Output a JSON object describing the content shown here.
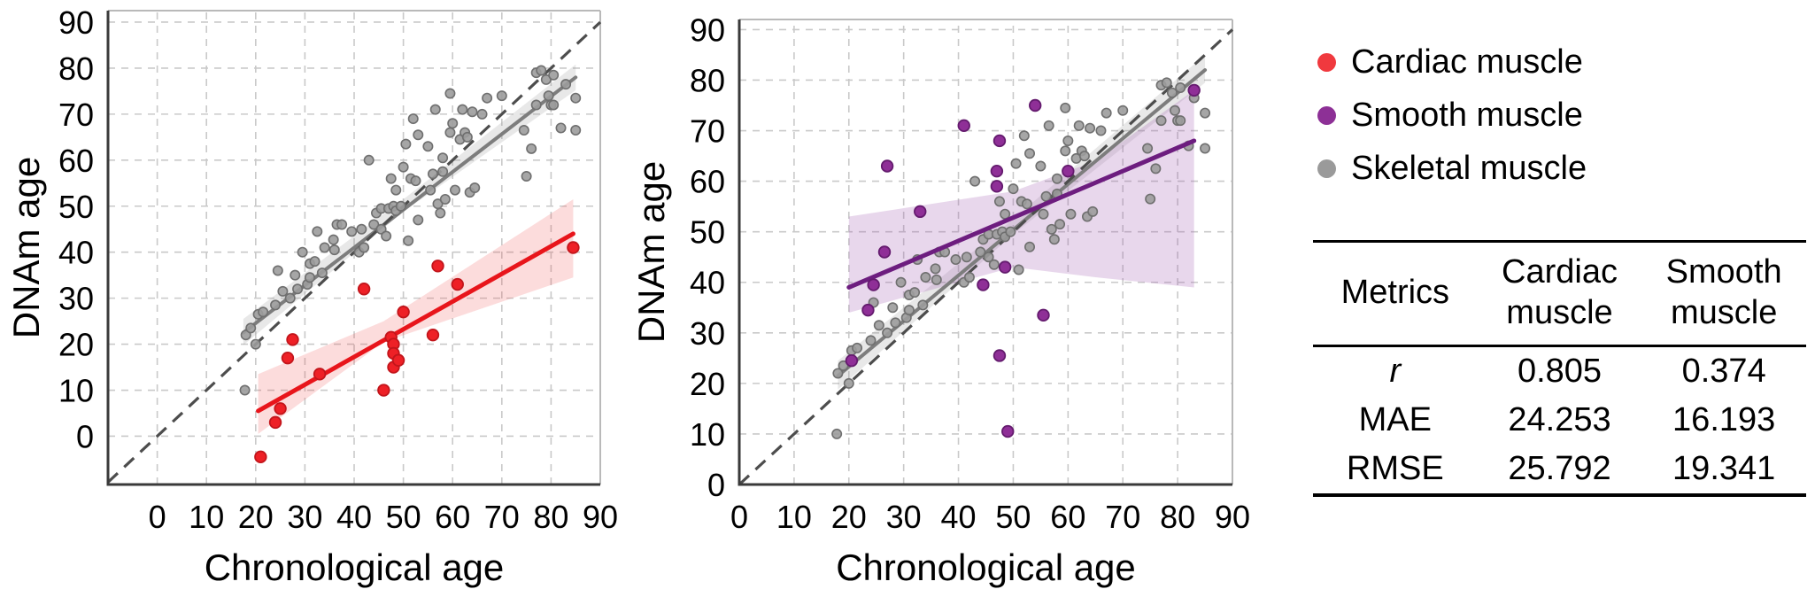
{
  "figure": {
    "background": "#ffffff"
  },
  "legend": {
    "items": [
      {
        "label": "Cardiac muscle",
        "color": "#f0393e"
      },
      {
        "label": "Smooth muscle",
        "color": "#8d3096"
      },
      {
        "label": "Skeletal muscle",
        "color": "#9a9a9a"
      }
    ]
  },
  "metrics_table": {
    "header": [
      "Metrics",
      "Cardiac muscle",
      "Smooth muscle"
    ],
    "rows": [
      {
        "metric": "r",
        "values": [
          "0.805",
          "0.374"
        ]
      },
      {
        "metric": "MAE",
        "values": [
          "24.253",
          "16.193"
        ]
      },
      {
        "metric": "RMSE",
        "values": [
          "25.792",
          "19.341"
        ]
      }
    ]
  },
  "chart_data": [
    {
      "type": "scatter",
      "panel": "left",
      "xlabel": "Chronological age",
      "ylabel": "DNAm age",
      "xlim": [
        -10,
        90
      ],
      "ylim": [
        -10.5,
        92.5
      ],
      "xticks": [
        0,
        10,
        20,
        30,
        40,
        50,
        60,
        70,
        80,
        90
      ],
      "yticks": [
        0,
        10,
        20,
        30,
        40,
        50,
        60,
        70,
        80,
        90
      ],
      "grid": true,
      "identity_line": {
        "x1": -10,
        "y1": -10,
        "x2": 90,
        "y2": 90,
        "color": "#4d4d4d"
      },
      "series": [
        {
          "name": "Skeletal muscle",
          "color": "#9c9c9c",
          "point_stroke": "#6f6f6f",
          "line_color": "#7d7d7d",
          "band_color": "rgba(150,150,150,0.22)",
          "regression": [
            [
              17.5,
              22.5
            ],
            [
              85,
              78
            ]
          ],
          "band": [
            [
              17.5,
              25.5
            ],
            [
              50,
              51.5
            ],
            [
              85,
              80.8
            ],
            [
              85,
              75.2
            ],
            [
              50,
              48.8
            ],
            [
              17.5,
              19.8
            ]
          ],
          "points": [
            [
              17.8,
              10
            ],
            [
              18,
              22
            ],
            [
              19,
              23.5
            ],
            [
              20,
              20
            ],
            [
              20.5,
              26.5
            ],
            [
              21.5,
              27
            ],
            [
              24,
              28.5
            ],
            [
              24.5,
              36
            ],
            [
              25.5,
              31.5
            ],
            [
              27,
              30
            ],
            [
              28,
              35
            ],
            [
              28.5,
              32
            ],
            [
              29.5,
              40
            ],
            [
              30.5,
              33
            ],
            [
              31,
              34.5
            ],
            [
              31,
              37.5
            ],
            [
              32,
              38
            ],
            [
              32.5,
              44.5
            ],
            [
              33.5,
              35.5
            ],
            [
              34,
              41
            ],
            [
              35.8,
              42.7
            ],
            [
              36,
              40.5
            ],
            [
              36.5,
              46
            ],
            [
              37.5,
              46
            ],
            [
              39.5,
              44.5
            ],
            [
              41,
              40
            ],
            [
              41.5,
              45
            ],
            [
              42,
              41
            ],
            [
              43,
              60
            ],
            [
              44,
              46
            ],
            [
              44.5,
              48.5
            ],
            [
              45.5,
              49.5
            ],
            [
              45.5,
              45
            ],
            [
              46.5,
              43.5
            ],
            [
              47,
              49.5
            ],
            [
              47.5,
              56
            ],
            [
              48,
              50
            ],
            [
              48.5,
              49
            ],
            [
              48.5,
              53.5
            ],
            [
              49.5,
              50
            ],
            [
              50,
              58.5
            ],
            [
              50.5,
              63.5
            ],
            [
              51,
              42.5
            ],
            [
              51.5,
              56
            ],
            [
              52,
              69
            ],
            [
              52.5,
              55.5
            ],
            [
              53,
              47
            ],
            [
              53,
              65.5
            ],
            [
              55,
              63
            ],
            [
              55.5,
              53.5
            ],
            [
              56,
              57
            ],
            [
              56.5,
              71
            ],
            [
              57,
              50.5
            ],
            [
              57.5,
              48.5
            ],
            [
              58,
              57.5
            ],
            [
              58,
              60.5
            ],
            [
              58.5,
              51.5
            ],
            [
              59.5,
              66
            ],
            [
              59.5,
              74.5
            ],
            [
              60,
              68
            ],
            [
              60.5,
              53.5
            ],
            [
              61.5,
              64.5
            ],
            [
              62,
              71
            ],
            [
              62.5,
              66
            ],
            [
              63,
              65
            ],
            [
              63.5,
              53
            ],
            [
              64,
              70.5
            ],
            [
              64.5,
              54
            ],
            [
              66,
              70
            ],
            [
              67,
              73.5
            ],
            [
              70,
              74
            ],
            [
              74.5,
              66.5
            ],
            [
              75,
              56.5
            ],
            [
              76,
              62.5
            ],
            [
              77,
              72
            ],
            [
              77,
              79
            ],
            [
              78,
              79.5
            ],
            [
              79,
              77.5
            ],
            [
              79.5,
              74
            ],
            [
              80,
              72
            ],
            [
              80.5,
              78.5
            ],
            [
              80.5,
              72
            ],
            [
              82,
              67
            ],
            [
              83,
              76.5
            ],
            [
              85,
              73.5
            ],
            [
              85,
              66.5
            ]
          ]
        },
        {
          "name": "Cardiac muscle",
          "color": "#ee2026",
          "point_stroke": "#c2151b",
          "line_color": "#e8151b",
          "band_color": "rgba(238,80,80,0.2)",
          "regression": [
            [
              20.5,
              5.5
            ],
            [
              84.5,
              44
            ]
          ],
          "band": [
            [
              20.5,
              13.5
            ],
            [
              46,
              25
            ],
            [
              84.5,
              51.5
            ],
            [
              84.5,
              34.5
            ],
            [
              46,
              20.5
            ],
            [
              20.5,
              0.5
            ]
          ],
          "points": [
            [
              21,
              -4.5
            ],
            [
              24,
              3
            ],
            [
              25,
              6
            ],
            [
              26.5,
              17
            ],
            [
              27.5,
              21
            ],
            [
              33,
              13.5
            ],
            [
              42,
              32
            ],
            [
              46,
              10
            ],
            [
              47.5,
              21.5
            ],
            [
              48,
              20
            ],
            [
              48,
              18
            ],
            [
              48,
              15
            ],
            [
              49,
              16.5
            ],
            [
              50,
              27
            ],
            [
              56,
              22
            ],
            [
              57,
              37
            ],
            [
              61,
              33
            ],
            [
              84.5,
              41
            ]
          ]
        }
      ]
    },
    {
      "type": "scatter",
      "panel": "right",
      "xlabel": "Chronological age",
      "ylabel": "DNAm age",
      "xlim": [
        0,
        90
      ],
      "ylim": [
        0,
        92
      ],
      "xticks": [
        0,
        10,
        20,
        30,
        40,
        50,
        60,
        70,
        80,
        90
      ],
      "yticks": [
        0,
        10,
        20,
        30,
        40,
        50,
        60,
        70,
        80,
        90
      ],
      "grid": true,
      "identity_line": {
        "x1": 0,
        "y1": 0,
        "x2": 90,
        "y2": 90,
        "color": "#4d4d4d"
      },
      "series": [
        {
          "name": "Skeletal muscle",
          "color": "#9c9c9c",
          "point_stroke": "#6f6f6f",
          "line_color": "#7d7d7d",
          "band_color": "rgba(150,150,150,0.22)",
          "regression": [
            [
              18,
              21.5
            ],
            [
              85,
              82
            ]
          ],
          "band": [
            [
              18,
              24.5
            ],
            [
              50,
              52.5
            ],
            [
              85,
              85
            ],
            [
              85,
              79.5
            ],
            [
              50,
              49.5
            ],
            [
              18,
              18.8
            ]
          ],
          "points": [
            [
              17.8,
              10
            ],
            [
              18,
              22
            ],
            [
              19,
              23.5
            ],
            [
              20,
              20
            ],
            [
              20.5,
              26.5
            ],
            [
              21.5,
              27
            ],
            [
              24,
              28.5
            ],
            [
              24.5,
              36
            ],
            [
              25.5,
              31.5
            ],
            [
              27,
              30
            ],
            [
              28,
              35
            ],
            [
              28.5,
              32
            ],
            [
              29.5,
              40
            ],
            [
              30.5,
              33
            ],
            [
              31,
              34.5
            ],
            [
              31,
              37.5
            ],
            [
              32,
              38
            ],
            [
              32.5,
              44.5
            ],
            [
              33.5,
              35.5
            ],
            [
              34,
              41
            ],
            [
              35.8,
              42.7
            ],
            [
              36,
              40.5
            ],
            [
              36.5,
              46
            ],
            [
              37.5,
              46
            ],
            [
              39.5,
              44.5
            ],
            [
              41,
              40
            ],
            [
              41.5,
              45
            ],
            [
              42,
              41
            ],
            [
              43,
              60
            ],
            [
              44,
              46
            ],
            [
              44.5,
              48.5
            ],
            [
              45.5,
              49.5
            ],
            [
              45.5,
              45
            ],
            [
              46.5,
              43.5
            ],
            [
              47,
              49.5
            ],
            [
              47.5,
              56
            ],
            [
              48,
              50
            ],
            [
              48.5,
              49
            ],
            [
              48.5,
              53.5
            ],
            [
              49.5,
              50
            ],
            [
              50,
              58.5
            ],
            [
              50.5,
              63.5
            ],
            [
              51,
              42.5
            ],
            [
              51.5,
              56
            ],
            [
              52,
              69
            ],
            [
              52.5,
              55.5
            ],
            [
              53,
              47
            ],
            [
              53,
              65.5
            ],
            [
              55,
              63
            ],
            [
              55.5,
              53.5
            ],
            [
              56,
              57
            ],
            [
              56.5,
              71
            ],
            [
              57,
              50.5
            ],
            [
              57.5,
              48.5
            ],
            [
              58,
              57.5
            ],
            [
              58,
              60.5
            ],
            [
              58.5,
              51.5
            ],
            [
              59.5,
              66
            ],
            [
              59.5,
              74.5
            ],
            [
              60,
              68
            ],
            [
              60.5,
              53.5
            ],
            [
              61.5,
              64.5
            ],
            [
              62,
              71
            ],
            [
              62.5,
              66
            ],
            [
              63,
              65
            ],
            [
              63.5,
              53
            ],
            [
              64,
              70.5
            ],
            [
              64.5,
              54
            ],
            [
              66,
              70
            ],
            [
              67,
              73.5
            ],
            [
              70,
              74
            ],
            [
              74.5,
              66.5
            ],
            [
              75,
              56.5
            ],
            [
              76,
              62.5
            ],
            [
              77,
              72
            ],
            [
              77,
              79
            ],
            [
              78,
              79.5
            ],
            [
              79,
              77.5
            ],
            [
              79.5,
              74
            ],
            [
              80,
              72
            ],
            [
              80.5,
              78.5
            ],
            [
              80.5,
              72
            ],
            [
              82,
              67
            ],
            [
              83,
              76.5
            ],
            [
              85,
              73.5
            ],
            [
              85,
              66.5
            ]
          ]
        },
        {
          "name": "Smooth muscle",
          "color": "#8f2f97",
          "point_stroke": "#641b6e",
          "line_color": "#6d1d7f",
          "band_color": "rgba(165,95,180,0.25)",
          "regression": [
            [
              20,
              39
            ],
            [
              83,
              68
            ]
          ],
          "band": [
            [
              20,
              53
            ],
            [
              35,
              55.5
            ],
            [
              50,
              58
            ],
            [
              65,
              64
            ],
            [
              83,
              78
            ],
            [
              83,
              39
            ],
            [
              65,
              41
            ],
            [
              50,
              43
            ],
            [
              35,
              38.5
            ],
            [
              20,
              34
            ]
          ],
          "points": [
            [
              20.5,
              24.5
            ],
            [
              23.5,
              34.5
            ],
            [
              24.5,
              39.5
            ],
            [
              26.5,
              46
            ],
            [
              27,
              63
            ],
            [
              33,
              54
            ],
            [
              41,
              71
            ],
            [
              44.5,
              39.5
            ],
            [
              47,
              59
            ],
            [
              47,
              62
            ],
            [
              47.5,
              68
            ],
            [
              47.5,
              25.5
            ],
            [
              48.5,
              43
            ],
            [
              49,
              10.5
            ],
            [
              54,
              75
            ],
            [
              55.5,
              33.5
            ],
            [
              60,
              62
            ],
            [
              83,
              78
            ]
          ]
        }
      ]
    }
  ]
}
